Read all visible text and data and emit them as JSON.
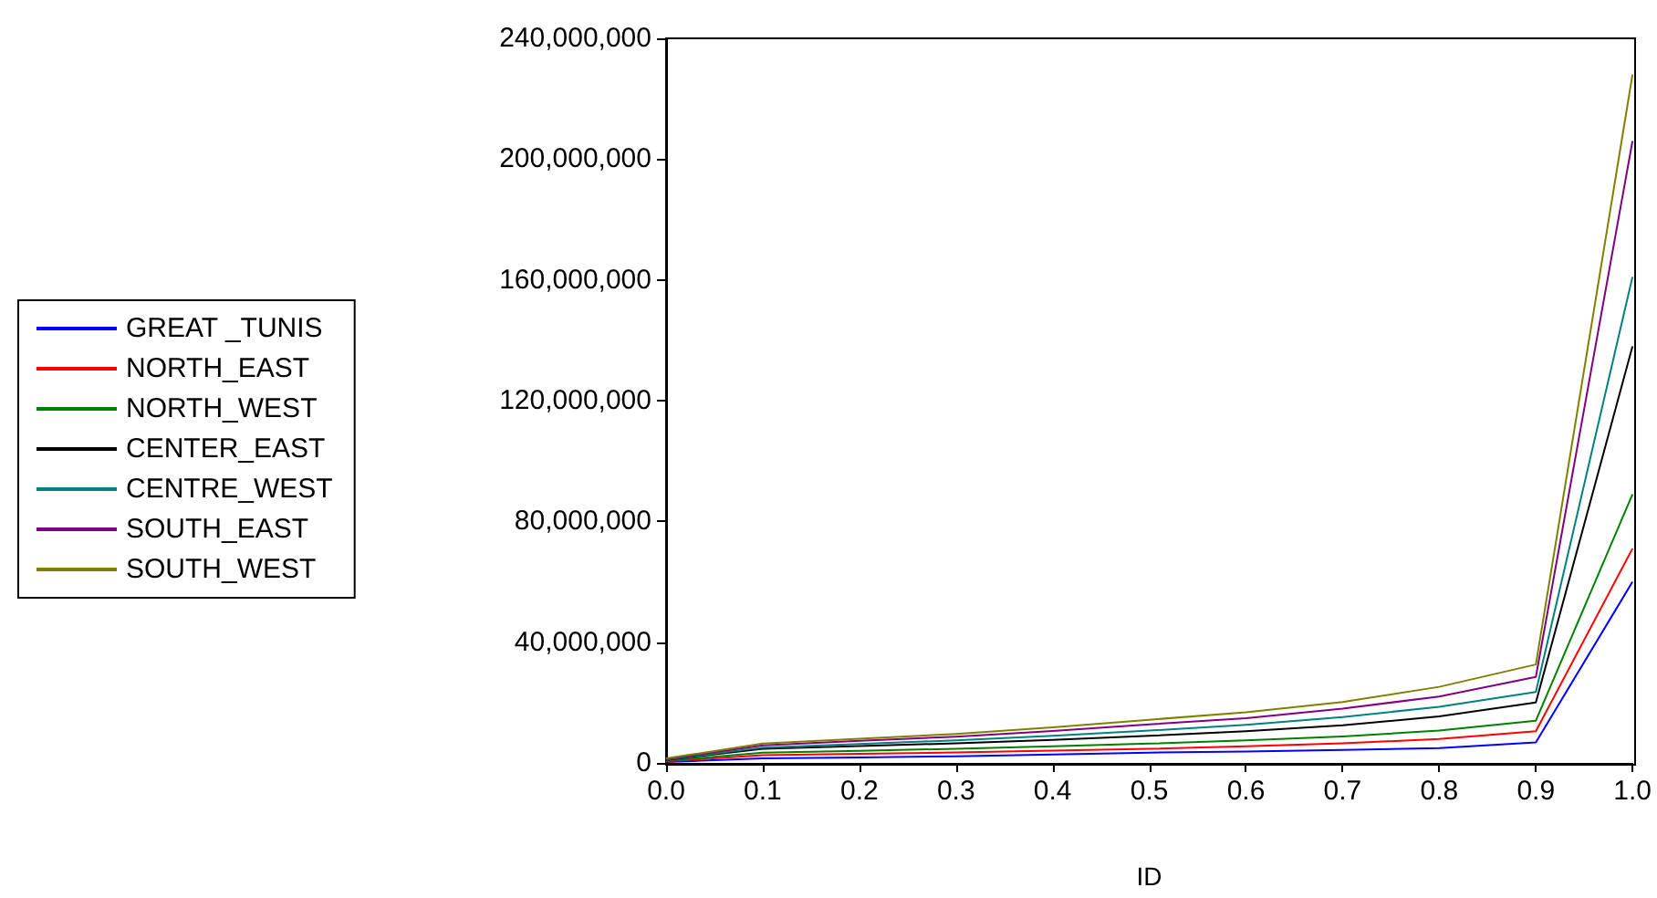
{
  "chart_data": {
    "type": "line",
    "xlabel": "ID",
    "x": [
      0,
      0.1,
      0.2,
      0.3,
      0.4,
      0.5,
      0.6,
      0.7,
      0.8,
      0.9,
      1.0
    ],
    "series": [
      {
        "name": "GREAT _TUNIS",
        "color": "#0000ff",
        "values": [
          300000,
          1500000,
          1800000,
          2200000,
          2800000,
          3400000,
          3800000,
          4300000,
          4900000,
          6800000,
          60000000
        ]
      },
      {
        "name": "NORTH_EAST",
        "color": "#ff0000",
        "values": [
          500000,
          2600000,
          3000000,
          3500000,
          4100000,
          4700000,
          5500000,
          6500000,
          7900000,
          10500000,
          71000000
        ]
      },
      {
        "name": "NORTH_WEST",
        "color": "#008000",
        "values": [
          700000,
          3400000,
          4000000,
          4700000,
          5500000,
          6400000,
          7500000,
          8800000,
          10700000,
          14000000,
          89000000
        ]
      },
      {
        "name": "CENTER_EAST",
        "color": "#000000",
        "values": [
          1000000,
          4700000,
          5600000,
          6500000,
          7600000,
          9000000,
          10500000,
          12500000,
          15400000,
          20000000,
          138000000
        ]
      },
      {
        "name": "CENTRE_WEST",
        "color": "#008080",
        "values": [
          1100000,
          5100000,
          6300000,
          7500000,
          9000000,
          10700000,
          12600000,
          15200000,
          18600000,
          23500000,
          161000000
        ]
      },
      {
        "name": "SOUTH_EAST",
        "color": "#800080",
        "values": [
          1300000,
          5800000,
          7300000,
          8700000,
          10600000,
          12800000,
          14800000,
          18000000,
          22000000,
          28500000,
          206000000
        ]
      },
      {
        "name": "SOUTH_WEST",
        "color": "#808000",
        "values": [
          1500000,
          6400000,
          8000000,
          9600000,
          11800000,
          14300000,
          16800000,
          20200000,
          25200000,
          32600000,
          228000000
        ]
      }
    ],
    "xlim": [
      0,
      1
    ],
    "xticks": [
      {
        "value": 0,
        "label": "0.0"
      },
      {
        "value": 0.1,
        "label": "0.1"
      },
      {
        "value": 0.2,
        "label": "0.2"
      },
      {
        "value": 0.3,
        "label": "0.3"
      },
      {
        "value": 0.4,
        "label": "0.4"
      },
      {
        "value": 0.5,
        "label": "0.5"
      },
      {
        "value": 0.6,
        "label": "0.6"
      },
      {
        "value": 0.7,
        "label": "0.7"
      },
      {
        "value": 0.8,
        "label": "0.8"
      },
      {
        "value": 0.9,
        "label": "0.9"
      },
      {
        "value": 1.0,
        "label": "1.0"
      }
    ],
    "ylim": [
      0,
      240000000
    ],
    "yticks": [
      0,
      {
        "value": 40000000,
        "label": "40,000,000"
      },
      {
        "value": 80000000,
        "label": "80,000,000"
      },
      {
        "value": 120000000,
        "label": "120,000,000"
      },
      {
        "value": 160000000,
        "label": "160,000,000"
      },
      {
        "value": 200000000,
        "label": "200,000,000"
      },
      {
        "value": 240000000,
        "label": "240,000,000"
      }
    ],
    "grid": false,
    "legend": "left",
    "marker": "none",
    "line_style": "solid"
  }
}
